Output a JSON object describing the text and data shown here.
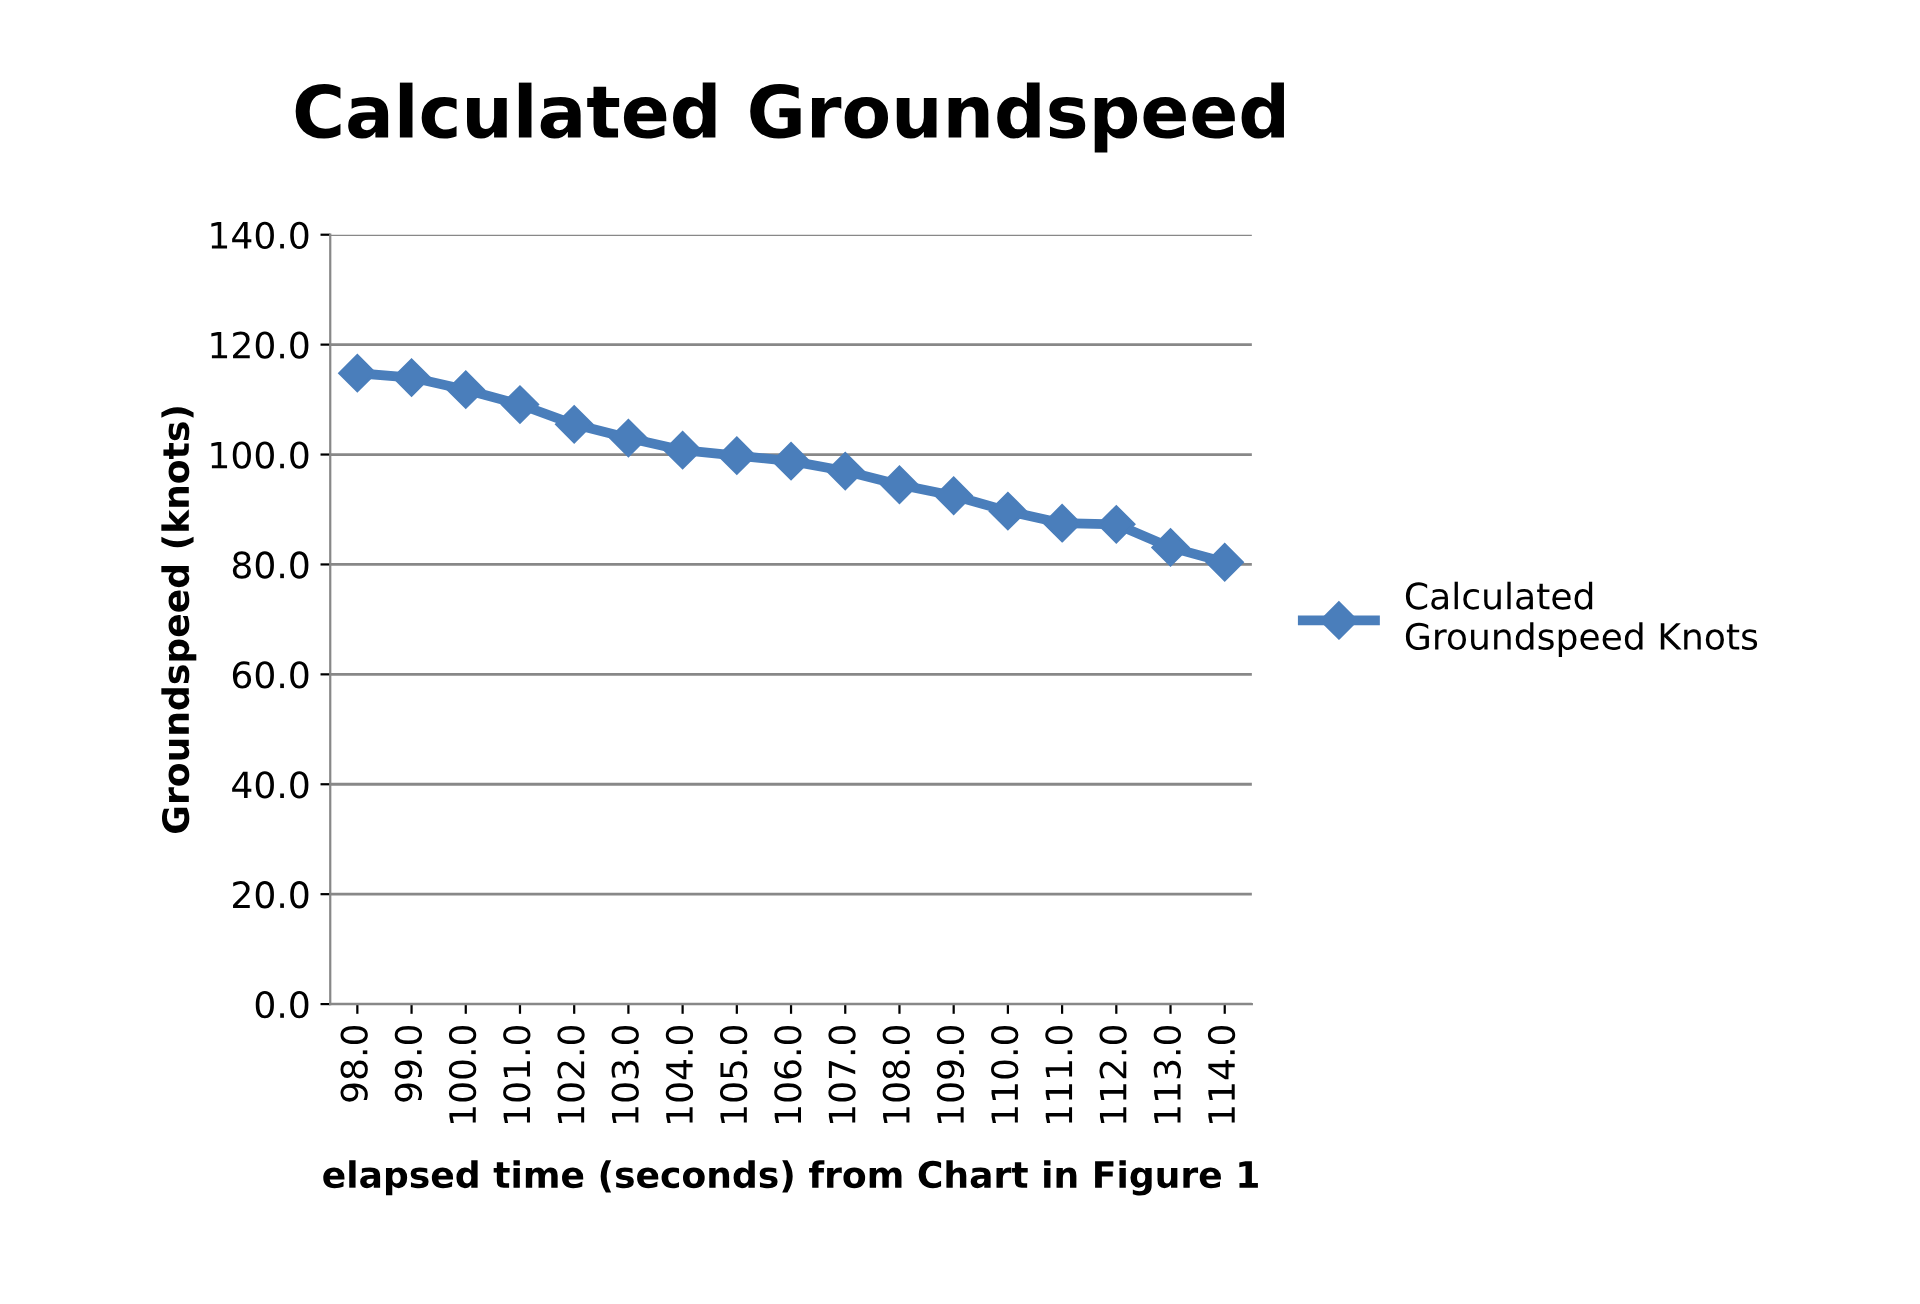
{
  "chart_data": {
    "type": "line",
    "title": "Calculated Groundspeed",
    "xlabel": "elapsed time (seconds) from Chart in Figure 1",
    "ylabel": "Groundspeed (knots)",
    "categories": [
      "98.0",
      "99.0",
      "100.0",
      "101.0",
      "102.0",
      "103.0",
      "104.0",
      "105.0",
      "106.0",
      "107.0",
      "108.0",
      "109.0",
      "110.0",
      "111.0",
      "112.0",
      "113.0",
      "114.0"
    ],
    "series": [
      {
        "name": "Calculated Groundspeed Knots",
        "color": "#4a7ebb",
        "values": [
          114.8,
          114.0,
          111.8,
          109.1,
          105.5,
          103.0,
          100.8,
          99.8,
          98.8,
          97.0,
          94.5,
          92.5,
          89.7,
          87.5,
          87.3,
          83.1,
          80.4
        ]
      }
    ],
    "ylim": [
      0,
      140
    ],
    "yticks": [
      {
        "value": 0,
        "label": "0.0"
      },
      {
        "value": 20,
        "label": "20.0"
      },
      {
        "value": 40,
        "label": "40.0"
      },
      {
        "value": 60,
        "label": "60.0"
      },
      {
        "value": 80,
        "label": "80.0"
      },
      {
        "value": 100,
        "label": "100.0"
      },
      {
        "value": 120,
        "label": "120.0"
      },
      {
        "value": 140,
        "label": "140.0"
      }
    ],
    "grid": "y",
    "legend": "right",
    "marker": "diamond",
    "line_style": "solid"
  }
}
